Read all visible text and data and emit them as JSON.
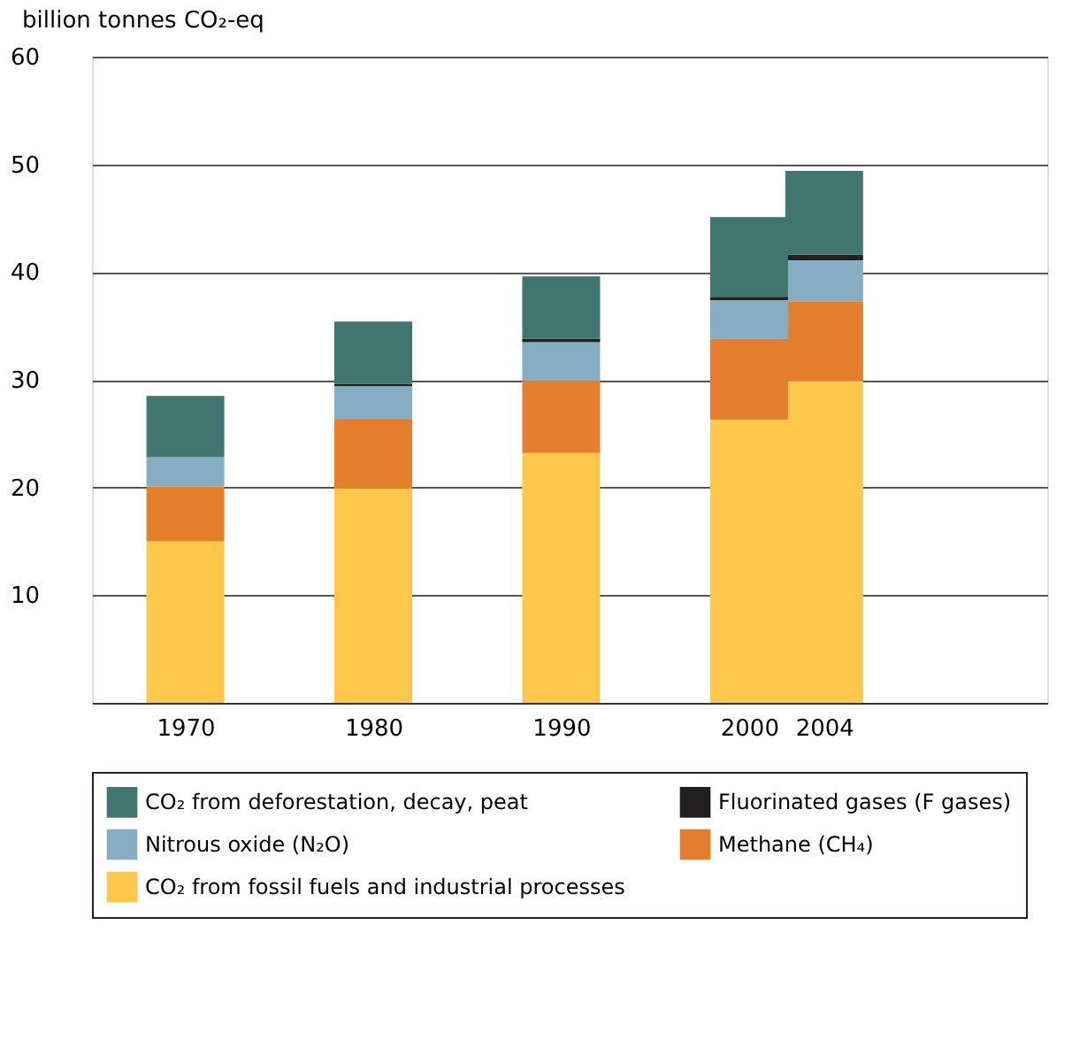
{
  "chart_data": {
    "type": "bar",
    "stacked": true,
    "ylabel": "billion tonnes CO₂-eq",
    "x": [
      1970,
      1980,
      1990,
      2000,
      2004
    ],
    "xlim": [
      1965.5,
      2015.4
    ],
    "xticks": [
      1970,
      1980,
      1990,
      2000,
      2004
    ],
    "ylim": [
      0,
      60
    ],
    "yticks": [
      {
        "value": 0,
        "label": null
      },
      10,
      20,
      30,
      40,
      50,
      60
    ],
    "grid": "y",
    "legend": "bottom",
    "series": [
      {
        "name": "CO₂ from fossil fuels and industrial processes",
        "color": "#fdc74a",
        "values": [
          15.0,
          19.9,
          23.2,
          26.3,
          29.9
        ]
      },
      {
        "name": "Methane (CH₄)",
        "color": "#e57e2d",
        "values": [
          5.1,
          6.4,
          6.7,
          7.5,
          7.4
        ]
      },
      {
        "name": "Nitrous oxide (N₂O)",
        "color": "#87adc4",
        "values": [
          2.7,
          3.1,
          3.6,
          3.6,
          3.8
        ]
      },
      {
        "name": "Fluorinated gases (F gases)",
        "color": "#231f20",
        "values": [
          0.0,
          0.2,
          0.3,
          0.3,
          0.5
        ]
      },
      {
        "name": "CO₂ from deforestation, decay, peat",
        "color": "#41756f",
        "values": [
          5.7,
          5.8,
          5.8,
          7.4,
          7.8
        ]
      }
    ]
  }
}
